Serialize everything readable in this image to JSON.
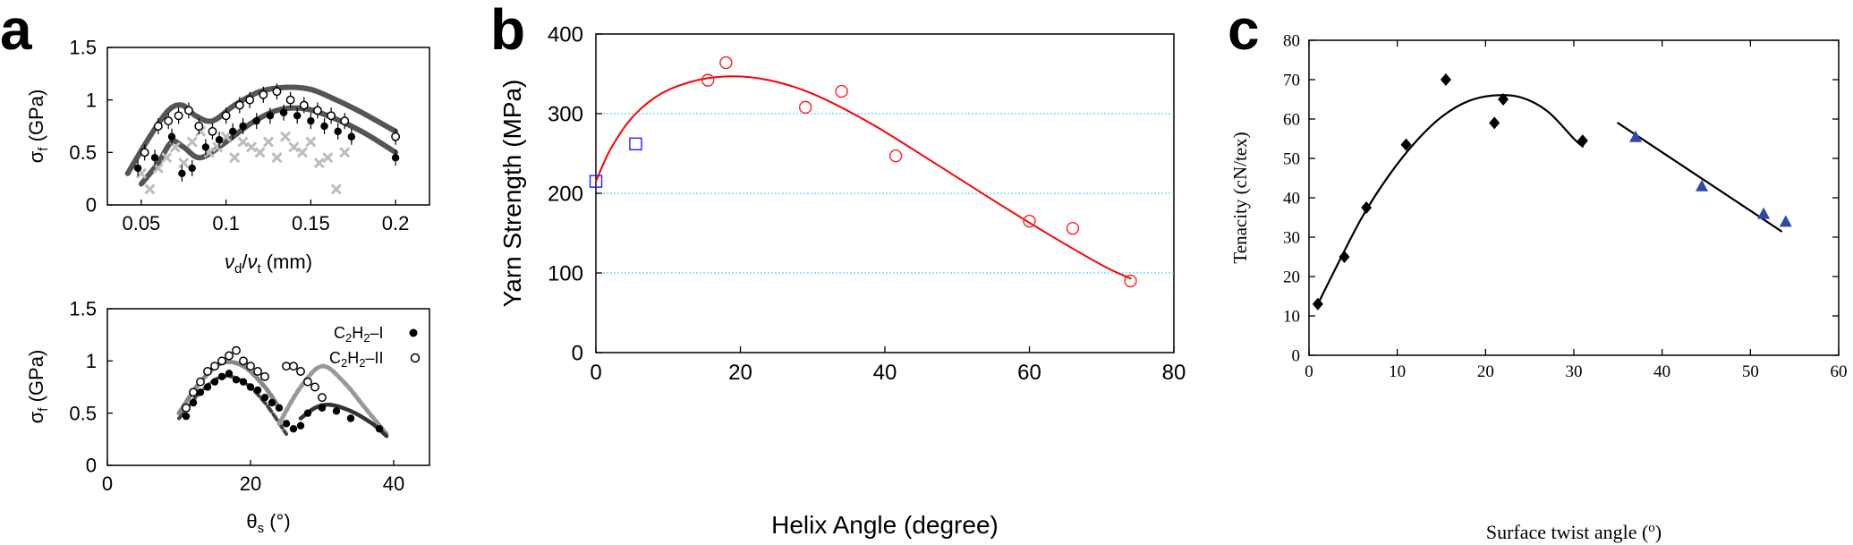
{
  "chart_data": [
    {
      "panel": "a",
      "subplot": "top",
      "type": "scatter",
      "xlabel": "νd/νt (mm)",
      "ylabel": "σf (GPa)",
      "xlim": [
        0.03,
        0.22
      ],
      "ylim": [
        0,
        1.5
      ],
      "xticks": [
        "0.05",
        "0.1",
        "0.15",
        "0.2"
      ],
      "xtick_values": [
        0.05,
        0.1,
        0.15,
        0.2
      ],
      "yticks": [
        "0",
        "0.5",
        "1",
        "1.5"
      ],
      "ytick_values": [
        0,
        0.5,
        1,
        1.5
      ],
      "grid": false,
      "series": [
        {
          "marker": "filled-circle",
          "x": [
            0.048,
            0.058,
            0.068,
            0.074,
            0.08,
            0.088,
            0.096,
            0.104,
            0.11,
            0.118,
            0.126,
            0.134,
            0.142,
            0.15,
            0.158,
            0.166,
            0.174,
            0.2
          ],
          "y": [
            0.35,
            0.45,
            0.65,
            0.3,
            0.35,
            0.55,
            0.62,
            0.7,
            0.75,
            0.8,
            0.85,
            0.88,
            0.85,
            0.8,
            0.75,
            0.7,
            0.65,
            0.45
          ]
        },
        {
          "marker": "open-circle",
          "x": [
            0.052,
            0.06,
            0.066,
            0.072,
            0.078,
            0.084,
            0.092,
            0.1,
            0.108,
            0.114,
            0.122,
            0.13,
            0.138,
            0.146,
            0.154,
            0.162,
            0.17,
            0.2
          ],
          "y": [
            0.5,
            0.75,
            0.8,
            0.85,
            0.9,
            0.75,
            0.7,
            0.85,
            0.95,
            1.0,
            1.05,
            1.08,
            1.0,
            0.95,
            0.9,
            0.85,
            0.8,
            0.65
          ]
        },
        {
          "marker": "grey-cross",
          "x": [
            0.05,
            0.055,
            0.06,
            0.065,
            0.07,
            0.075,
            0.08,
            0.085,
            0.09,
            0.095,
            0.1,
            0.105,
            0.11,
            0.115,
            0.12,
            0.125,
            0.13,
            0.135,
            0.14,
            0.145,
            0.15,
            0.155,
            0.16,
            0.17,
            0.165
          ],
          "y": [
            0.3,
            0.15,
            0.35,
            0.45,
            0.55,
            0.4,
            0.6,
            0.7,
            0.5,
            0.55,
            0.65,
            0.45,
            0.6,
            0.55,
            0.5,
            0.6,
            0.45,
            0.65,
            0.55,
            0.5,
            0.6,
            0.4,
            0.45,
            0.5,
            0.15
          ]
        }
      ],
      "fits": [
        {
          "x": [
            0.042,
            0.055,
            0.066,
            0.074,
            0.082,
            0.092,
            0.105,
            0.12,
            0.135,
            0.15,
            0.165,
            0.18,
            0.2
          ],
          "y": [
            0.3,
            0.65,
            0.9,
            0.95,
            0.85,
            0.8,
            0.95,
            1.08,
            1.12,
            1.1,
            1.0,
            0.88,
            0.7
          ]
        },
        {
          "x": [
            0.05,
            0.06,
            0.068,
            0.075,
            0.085,
            0.1,
            0.115,
            0.13,
            0.145,
            0.16,
            0.18,
            0.2
          ],
          "y": [
            0.2,
            0.4,
            0.6,
            0.55,
            0.45,
            0.6,
            0.78,
            0.9,
            0.92,
            0.85,
            0.7,
            0.5
          ]
        }
      ]
    },
    {
      "panel": "a",
      "subplot": "bottom",
      "type": "scatter",
      "xlabel": "θs (°)",
      "ylabel": "σf (GPa)",
      "xlim": [
        0,
        45
      ],
      "ylim": [
        0,
        1.5
      ],
      "xticks": [
        "0",
        "20",
        "40"
      ],
      "xtick_values": [
        0,
        20,
        40
      ],
      "yticks": [
        "0",
        "0.5",
        "1",
        "1.5"
      ],
      "ytick_values": [
        0,
        0.5,
        1,
        1.5
      ],
      "grid": false,
      "legend": "top-right",
      "series": [
        {
          "name": "C2H2–I",
          "marker": "filled-circle",
          "x": [
            11,
            12,
            13,
            14,
            15,
            16,
            17,
            18,
            19,
            20,
            21,
            22,
            23,
            24,
            25,
            26,
            27,
            28,
            30,
            32,
            34,
            38
          ],
          "y": [
            0.47,
            0.6,
            0.7,
            0.75,
            0.8,
            0.85,
            0.88,
            0.82,
            0.8,
            0.75,
            0.72,
            0.65,
            0.6,
            0.55,
            0.4,
            0.35,
            0.38,
            0.5,
            0.55,
            0.52,
            0.45,
            0.35
          ]
        },
        {
          "name": "C2H2–II",
          "marker": "open-circle",
          "x": [
            11,
            12,
            13,
            14,
            15,
            16,
            17,
            18,
            19,
            20,
            21,
            22,
            25,
            26,
            27,
            28,
            29,
            30
          ],
          "y": [
            0.55,
            0.7,
            0.8,
            0.9,
            0.95,
            1.0,
            1.05,
            1.1,
            1.0,
            0.95,
            0.9,
            0.85,
            0.95,
            0.95,
            0.9,
            0.8,
            0.75,
            0.65
          ]
        }
      ],
      "fits": [
        {
          "x": [
            10,
            13,
            16,
            19,
            22,
            25
          ],
          "y": [
            0.45,
            0.7,
            0.85,
            0.8,
            0.6,
            0.3
          ]
        },
        {
          "x": [
            10,
            13,
            16,
            19,
            22,
            24
          ],
          "y": [
            0.5,
            0.8,
            0.98,
            0.95,
            0.75,
            0.55
          ]
        },
        {
          "x": [
            24,
            27,
            30,
            33,
            36,
            39
          ],
          "y": [
            0.4,
            0.75,
            0.95,
            0.8,
            0.55,
            0.3
          ]
        },
        {
          "x": [
            27,
            29,
            31,
            34,
            37,
            39
          ],
          "y": [
            0.45,
            0.55,
            0.58,
            0.52,
            0.4,
            0.28
          ]
        }
      ]
    },
    {
      "panel": "b",
      "type": "scatter",
      "xlabel": "Helix Angle (degree)",
      "ylabel": "Yarn Strength (MPa)",
      "xlim": [
        0,
        80
      ],
      "ylim": [
        0,
        400
      ],
      "xticks": [
        "0",
        "20",
        "40",
        "60",
        "80"
      ],
      "xtick_values": [
        0,
        20,
        40,
        60,
        80
      ],
      "yticks": [
        "0",
        "100",
        "200",
        "300",
        "400"
      ],
      "ytick_values": [
        0,
        100,
        200,
        300,
        400
      ],
      "grid": "horizontal dotted at 100, 200, 300",
      "series": [
        {
          "marker": "red-open-circle",
          "x": [
            15.5,
            18,
            29,
            34,
            41.5,
            60,
            66,
            74
          ],
          "y": [
            342,
            364,
            308,
            328,
            247,
            165,
            156,
            90
          ]
        },
        {
          "marker": "blue-open-square",
          "x": [
            0,
            5.5
          ],
          "y": [
            215,
            262
          ]
        }
      ],
      "fit": {
        "x": [
          0,
          2,
          5,
          9,
          14,
          19,
          24,
          30,
          38,
          46,
          54,
          62,
          70,
          74
        ],
        "y": [
          215,
          255,
          295,
          325,
          342,
          347,
          342,
          325,
          288,
          243,
          197,
          152,
          110,
          93
        ]
      }
    },
    {
      "panel": "c",
      "type": "scatter",
      "xlabel": "Surface twist angle (°)",
      "ylabel": "Tenacity (cN/tex)",
      "xlim": [
        0,
        60
      ],
      "ylim": [
        0,
        80
      ],
      "xticks": [
        "0",
        "10",
        "20",
        "30",
        "40",
        "50",
        "60"
      ],
      "xtick_values": [
        0,
        10,
        20,
        30,
        40,
        50,
        60
      ],
      "yticks": [
        "0",
        "10",
        "20",
        "30",
        "40",
        "50",
        "60",
        "70",
        "80"
      ],
      "ytick_values": [
        0,
        10,
        20,
        30,
        40,
        50,
        60,
        70,
        80
      ],
      "grid": false,
      "series": [
        {
          "marker": "black-diamond",
          "x": [
            1,
            4,
            6.5,
            11,
            15.5,
            21,
            22,
            31
          ],
          "y": [
            13,
            25,
            37.5,
            53.5,
            70,
            59,
            65,
            54.5
          ]
        },
        {
          "marker": "blue-triangle",
          "x": [
            37,
            44.5,
            51.5,
            54
          ],
          "y": [
            55.5,
            43,
            36,
            34
          ]
        }
      ],
      "fits": [
        {
          "x": [
            1,
            3,
            6,
            9,
            12,
            15,
            18,
            21,
            24,
            27,
            30,
            31
          ],
          "y": [
            13,
            22,
            35,
            45.5,
            54,
            60.5,
            64.5,
            66,
            65.5,
            62,
            55,
            53
          ]
        },
        {
          "x": [
            35,
            53.5
          ],
          "y": [
            59,
            31.5
          ]
        }
      ]
    }
  ],
  "panel_labels": {
    "a": "a",
    "b": "b",
    "c": "c"
  },
  "legend_a": {
    "filled": "C2H2–I",
    "open": "C2H2–II"
  }
}
